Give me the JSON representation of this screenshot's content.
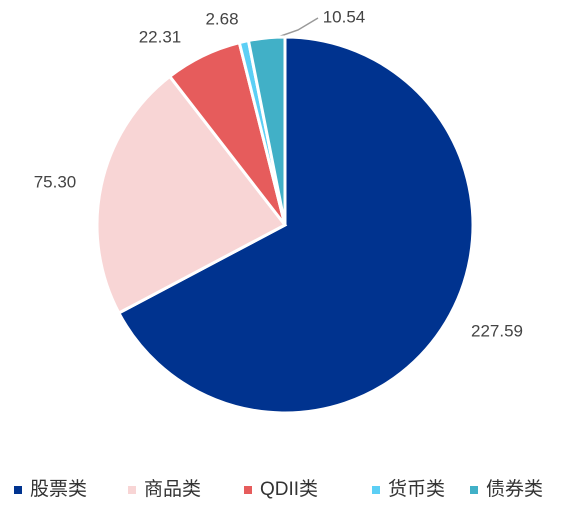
{
  "chart_data": {
    "type": "pie",
    "categories": [
      "股票类",
      "商品类",
      "QDII类",
      "货币类",
      "债券类"
    ],
    "values": [
      227.59,
      75.3,
      22.31,
      2.68,
      10.54
    ],
    "value_labels": [
      "227.59",
      "75.30",
      "22.31",
      "2.68",
      "10.54"
    ],
    "colors": [
      "#00338f",
      "#f8d5d5",
      "#e65c5c",
      "#5ccff5",
      "#41b0c7"
    ],
    "legend": "bottom"
  }
}
